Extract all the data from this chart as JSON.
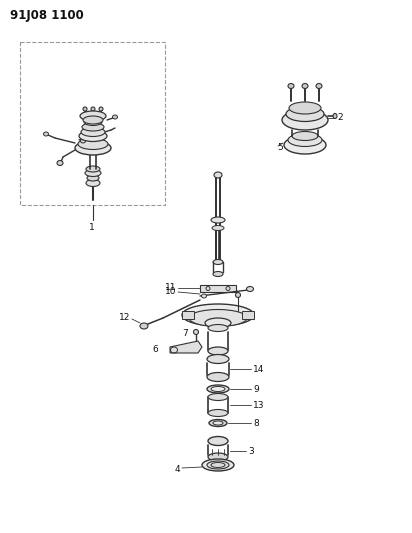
{
  "title": "91J08 1100",
  "bg": "#ffffff",
  "lc": "#333333",
  "tc": "#111111",
  "fig_w": 4.12,
  "fig_h": 5.33,
  "dpi": 100
}
